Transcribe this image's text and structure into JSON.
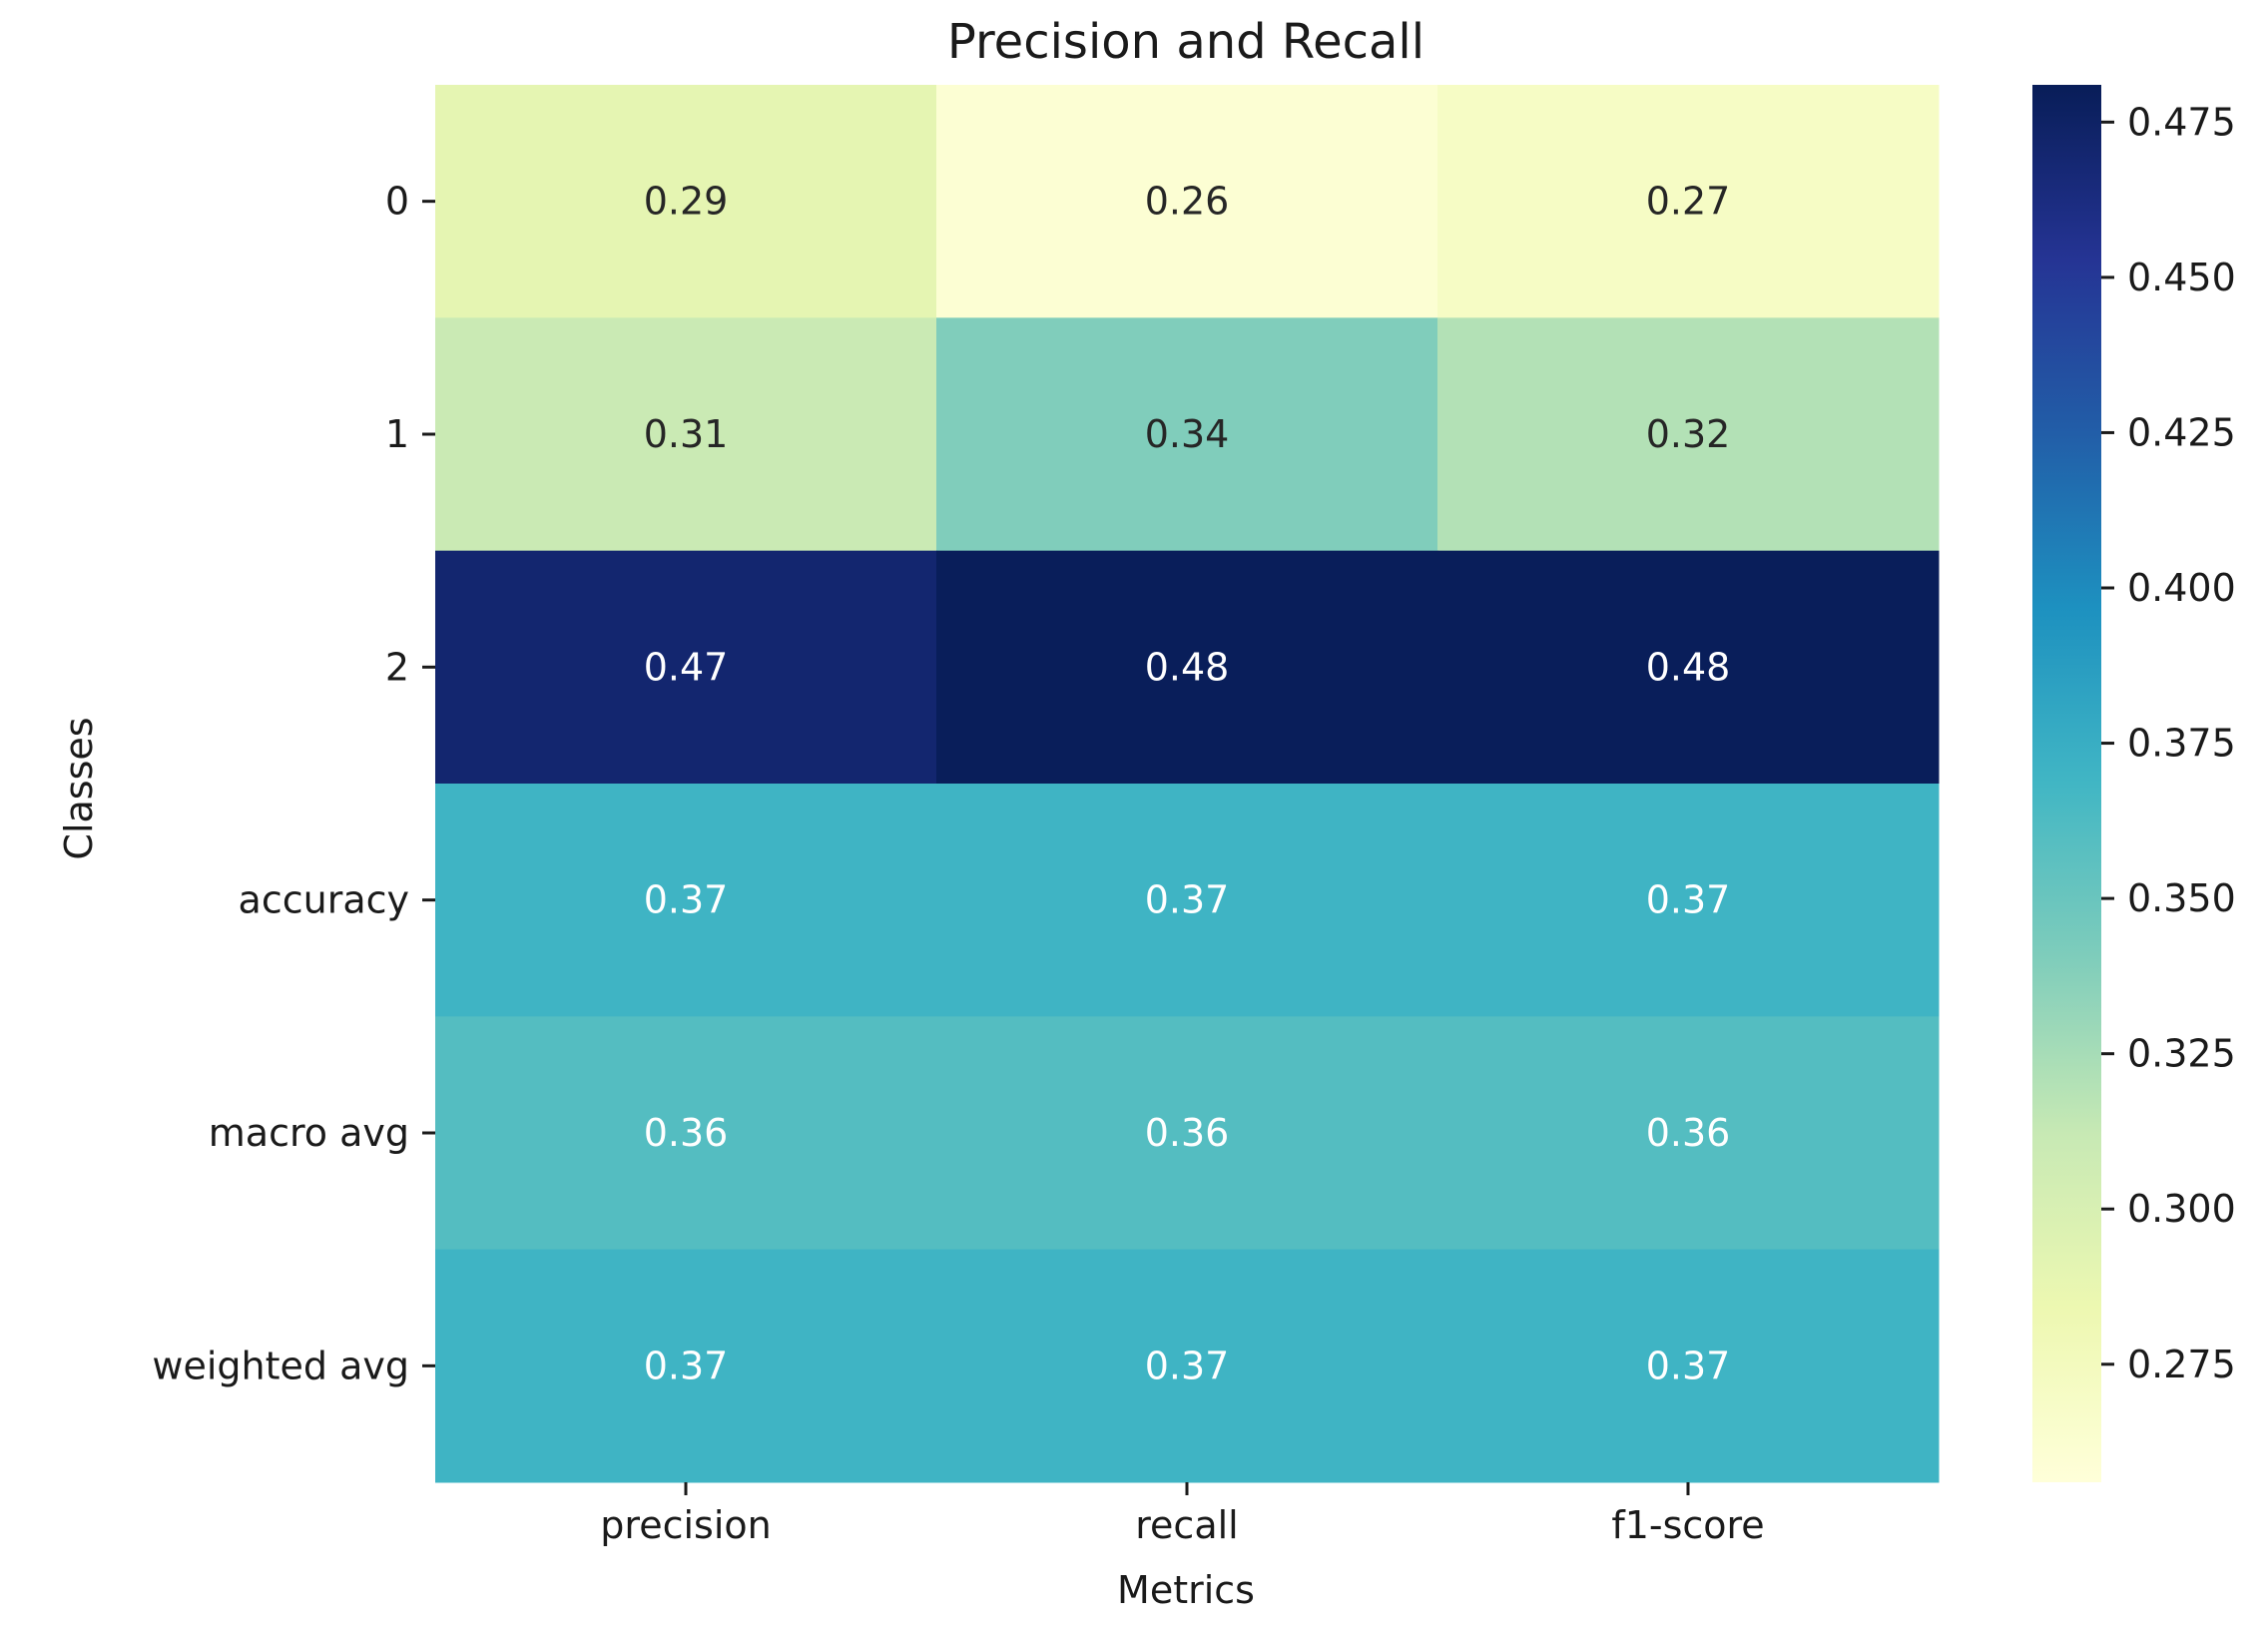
{
  "chart_data": {
    "type": "heatmap",
    "title": "Precision and Recall",
    "xlabel": "Metrics",
    "ylabel": "Classes",
    "x_categories": [
      "precision",
      "recall",
      "f1-score"
    ],
    "y_categories": [
      "0",
      "1",
      "2",
      "accuracy",
      "macro avg",
      "weighted avg"
    ],
    "values": [
      [
        0.29,
        0.26,
        0.27
      ],
      [
        0.31,
        0.34,
        0.32
      ],
      [
        0.47,
        0.48,
        0.48
      ],
      [
        0.37,
        0.37,
        0.37
      ],
      [
        0.36,
        0.36,
        0.36
      ],
      [
        0.37,
        0.37,
        0.37
      ]
    ],
    "value_labels": [
      [
        "0.29",
        "0.26",
        "0.27"
      ],
      [
        "0.31",
        "0.34",
        "0.32"
      ],
      [
        "0.47",
        "0.48",
        "0.48"
      ],
      [
        "0.37",
        "0.37",
        "0.37"
      ],
      [
        "0.36",
        "0.36",
        "0.36"
      ],
      [
        "0.37",
        "0.37",
        "0.37"
      ]
    ],
    "colormap": "YlGnBu",
    "colorbar": {
      "range": [
        0.256,
        0.481
      ],
      "ticks": [
        0.275,
        0.3,
        0.325,
        0.35,
        0.375,
        0.4,
        0.425,
        0.45,
        0.475
      ],
      "tick_labels": [
        "0.275",
        "0.300",
        "0.325",
        "0.350",
        "0.375",
        "0.400",
        "0.425",
        "0.450",
        "0.475"
      ]
    },
    "grid": false,
    "legend": "colorbar-right"
  }
}
